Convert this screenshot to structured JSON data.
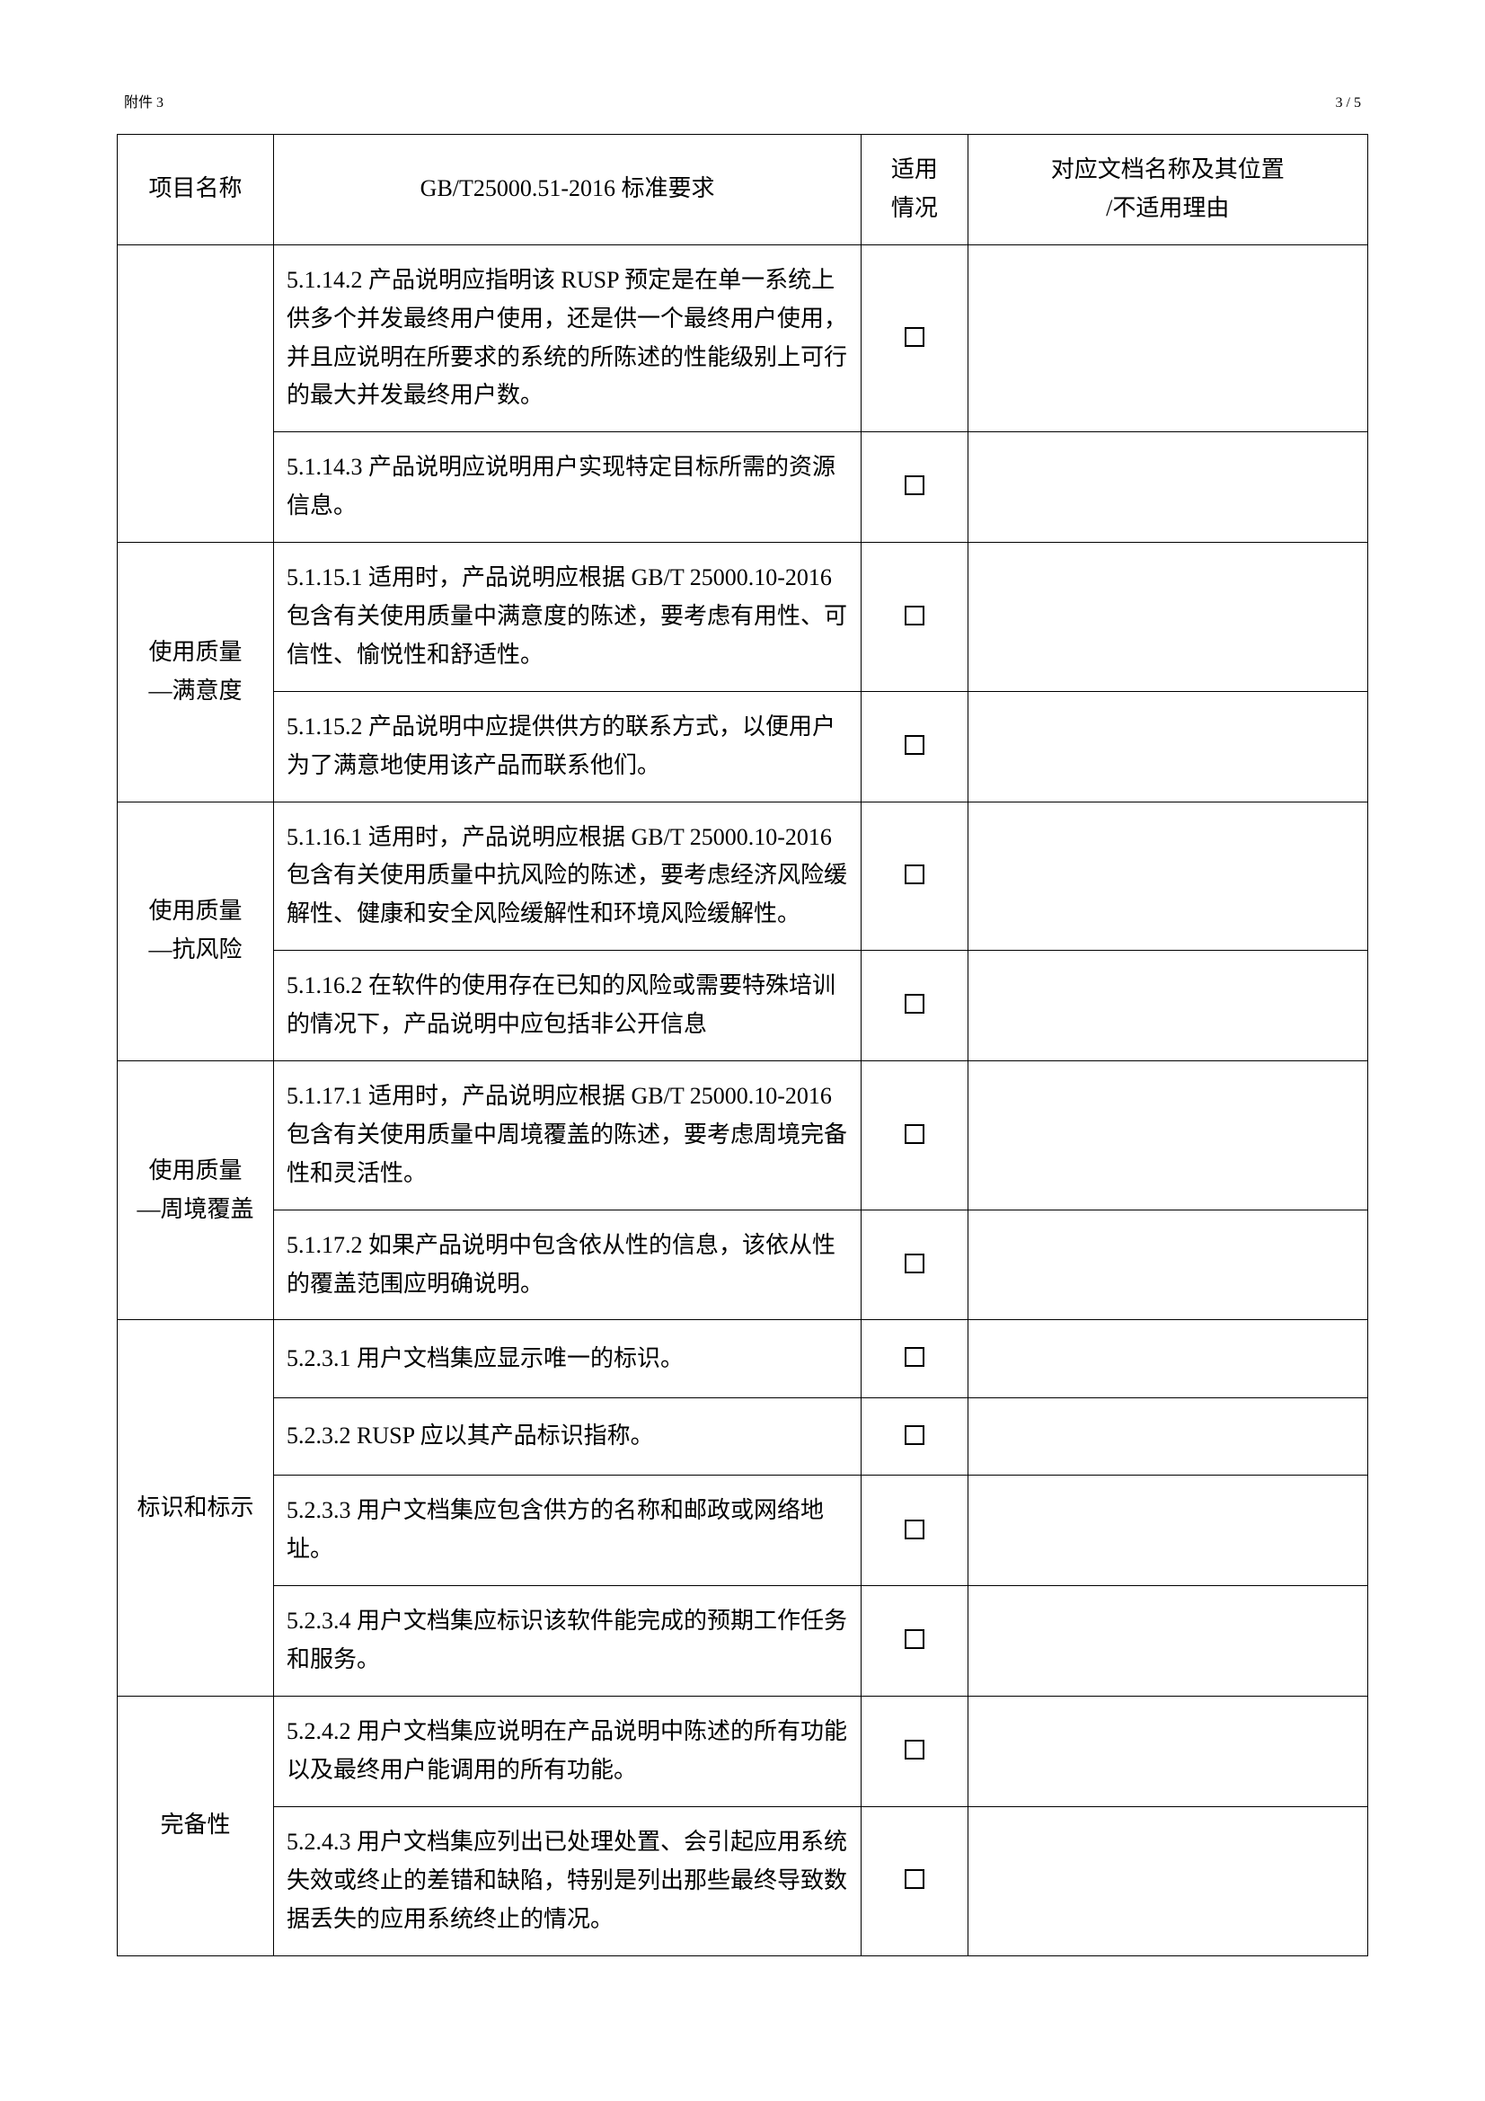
{
  "header": {
    "title": "附件 3",
    "page": "3 / 5"
  },
  "table": {
    "columns": {
      "name": "项目名称",
      "requirement": "GB/T25000.51-2016 标准要求",
      "applicable": "适用\n情况",
      "document": "对应文档名称及其位置\n/不适用理由"
    },
    "groups": [
      {
        "name": "",
        "rows": [
          {
            "req": "5.1.14.2 产品说明应指明该 RUSP 预定是在单一系统上供多个并发最终用户使用，还是供一个最终用户使用，并且应说明在所要求的系统的所陈述的性能级别上可行的最大并发最终用户数。",
            "check": "☐",
            "doc": ""
          },
          {
            "req": "5.1.14.3 产品说明应说明用户实现特定目标所需的资源信息。",
            "check": "☐",
            "doc": ""
          }
        ]
      },
      {
        "name": "使用质量\n—满意度",
        "rows": [
          {
            "req": "5.1.15.1 适用时，产品说明应根据 GB/T 25000.10-2016 包含有关使用质量中满意度的陈述，要考虑有用性、可信性、愉悦性和舒适性。",
            "check": "☐",
            "doc": ""
          },
          {
            "req": "5.1.15.2 产品说明中应提供供方的联系方式，以便用户为了满意地使用该产品而联系他们。",
            "check": "☐",
            "doc": ""
          }
        ]
      },
      {
        "name": "使用质量\n—抗风险",
        "rows": [
          {
            "req": "5.1.16.1 适用时，产品说明应根据 GB/T 25000.10-2016 包含有关使用质量中抗风险的陈述，要考虑经济风险缓解性、健康和安全风险缓解性和环境风险缓解性。",
            "check": "☐",
            "doc": ""
          },
          {
            "req": "5.1.16.2 在软件的使用存在已知的风险或需要特殊培训的情况下，产品说明中应包括非公开信息",
            "check": "☐",
            "doc": ""
          }
        ]
      },
      {
        "name": "使用质量\n—周境覆盖",
        "rows": [
          {
            "req": "5.1.17.1 适用时，产品说明应根据 GB/T 25000.10-2016 包含有关使用质量中周境覆盖的陈述，要考虑周境完备性和灵活性。",
            "check": "☐",
            "doc": ""
          },
          {
            "req": "5.1.17.2 如果产品说明中包含依从性的信息，该依从性的覆盖范围应明确说明。",
            "check": "☐",
            "doc": ""
          }
        ]
      },
      {
        "name": "标识和标示",
        "rows": [
          {
            "req": "5.2.3.1 用户文档集应显示唯一的标识。",
            "check": "☐",
            "doc": ""
          },
          {
            "req": "5.2.3.2 RUSP 应以其产品标识指称。",
            "check": "☐",
            "doc": ""
          },
          {
            "req": "5.2.3.3 用户文档集应包含供方的名称和邮政或网络地址。",
            "check": "☐",
            "doc": ""
          },
          {
            "req": "5.2.3.4 用户文档集应标识该软件能完成的预期工作任务和服务。",
            "check": "☐",
            "doc": ""
          }
        ]
      },
      {
        "name": "完备性",
        "rows": [
          {
            "req": "5.2.4.2 用户文档集应说明在产品说明中陈述的所有功能以及最终用户能调用的所有功能。",
            "check": "☐",
            "doc": ""
          },
          {
            "req": "5.2.4.3 用户文档集应列出已处理处置、会引起应用系统失效或终止的差错和缺陷，特别是列出那些最终导致数据丢失的应用系统终止的情况。",
            "check": "☐",
            "doc": ""
          }
        ]
      }
    ]
  }
}
